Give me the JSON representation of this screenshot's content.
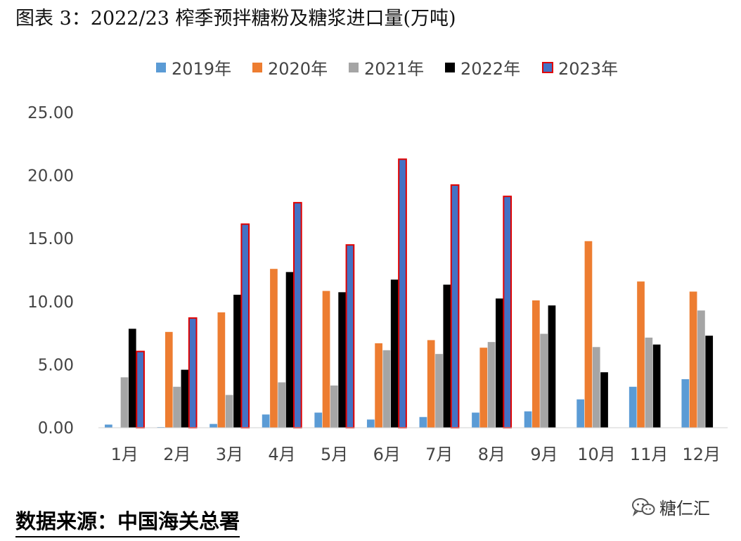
{
  "figure": {
    "title": "图表 3：2022/23 榨季预拌糖粉及糖浆进口量(万吨)",
    "source": "数据来源：中国海关总署",
    "watermark": "糖仁汇",
    "watermark_icon": "wechat-icon"
  },
  "chart_data": {
    "type": "bar",
    "title": "",
    "xlabel": "",
    "ylabel": "",
    "ylim": [
      0,
      25
    ],
    "yticks": [
      "0.00",
      "5.00",
      "10.00",
      "15.00",
      "20.00",
      "25.00"
    ],
    "legend_position": "top",
    "grid": false,
    "categories": [
      "1月",
      "2月",
      "3月",
      "4月",
      "5月",
      "6月",
      "7月",
      "8月",
      "9月",
      "10月",
      "11月",
      "12月"
    ],
    "series": [
      {
        "name": "2019年",
        "color": "#5B9BD5",
        "values": [
          0.25,
          0.05,
          0.3,
          1.05,
          1.2,
          0.65,
          0.85,
          1.2,
          1.3,
          2.25,
          3.25,
          3.85
        ]
      },
      {
        "name": "2020年",
        "color": "#ED7D31",
        "values": [
          0,
          7.6,
          9.15,
          12.6,
          10.85,
          6.7,
          6.95,
          6.35,
          10.1,
          14.8,
          11.6,
          10.8
        ]
      },
      {
        "name": "2021年",
        "color": "#A5A5A5",
        "values": [
          4.0,
          3.25,
          2.6,
          3.6,
          3.35,
          6.15,
          5.85,
          6.8,
          7.45,
          6.4,
          7.15,
          9.3
        ]
      },
      {
        "name": "2022年",
        "color": "#000000",
        "values": [
          7.85,
          4.6,
          10.55,
          12.35,
          10.75,
          11.75,
          11.35,
          10.25,
          9.7,
          4.4,
          6.6,
          7.3
        ]
      },
      {
        "name": "2023年",
        "color": "#4472C4",
        "stroke": "#E00000",
        "values": [
          6.05,
          8.7,
          16.15,
          17.85,
          14.5,
          21.3,
          19.25,
          18.35,
          null,
          null,
          null,
          null
        ]
      }
    ]
  }
}
